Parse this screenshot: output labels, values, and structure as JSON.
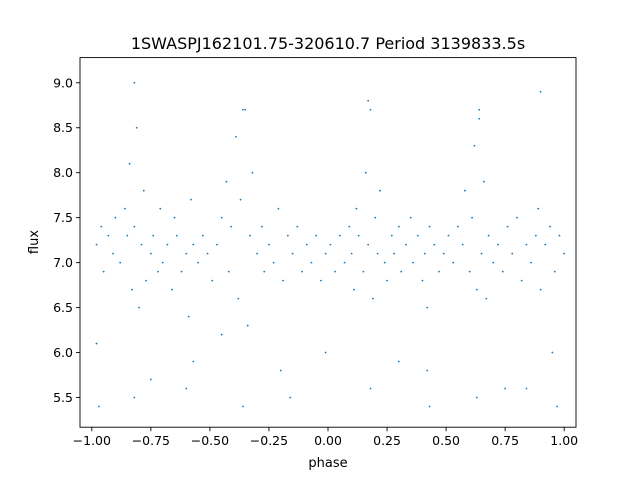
{
  "chart_data": {
    "type": "scatter",
    "title": "1SWASPJ162101.75-320610.7 Period 3139833.5s",
    "xlabel": "phase",
    "ylabel": "flux",
    "xlim": [
      -1.05,
      1.05
    ],
    "ylim": [
      5.17,
      9.28
    ],
    "x_ticks": [
      -1.0,
      -0.75,
      -0.5,
      -0.25,
      0.0,
      0.25,
      0.5,
      0.75,
      1.0
    ],
    "x_tick_labels": [
      "−1.00",
      "−0.75",
      "−0.50",
      "−0.25",
      "0.00",
      "0.25",
      "0.50",
      "0.75",
      "1.00"
    ],
    "y_ticks": [
      5.5,
      6.0,
      6.5,
      7.0,
      7.5,
      8.0,
      8.5,
      9.0
    ],
    "y_tick_labels": [
      "5.5",
      "6.0",
      "6.5",
      "7.0",
      "7.5",
      "8.0",
      "8.5",
      "9.0"
    ],
    "marker_color": "#1f77b4",
    "grid": false,
    "legend": "none",
    "series": [
      {
        "x": [
          -0.98,
          -0.96,
          -0.95,
          -0.93,
          -0.91,
          -0.9,
          -0.88,
          -0.86,
          -0.85,
          -0.84,
          -0.83,
          -0.82,
          -0.81,
          -0.8,
          -0.79,
          -0.78,
          -0.77,
          -0.75,
          -0.74,
          -0.72,
          -0.71,
          -0.7,
          -0.68,
          -0.66,
          -0.65,
          -0.64,
          -0.62,
          -0.6,
          -0.59,
          -0.58,
          -0.57,
          -0.55,
          -0.53,
          -0.51,
          -0.49,
          -0.47,
          -0.45,
          -0.43,
          -0.42,
          -0.41,
          -0.39,
          -0.38,
          -0.37,
          -0.35,
          -0.34,
          -0.33,
          -0.32,
          -0.3,
          -0.28,
          -0.27,
          -0.25,
          -0.23,
          -0.21,
          -0.19,
          -0.17,
          -0.15,
          -0.13,
          -0.11,
          -0.09,
          -0.07,
          -0.05,
          -0.03,
          -0.01,
          0.01,
          0.03,
          0.05,
          0.07,
          0.09,
          0.1,
          0.11,
          0.12,
          0.13,
          0.15,
          0.16,
          0.17,
          0.18,
          0.19,
          0.2,
          0.21,
          0.22,
          0.24,
          0.25,
          0.27,
          0.28,
          0.3,
          0.31,
          0.33,
          0.35,
          0.36,
          0.38,
          0.4,
          0.41,
          0.42,
          0.43,
          0.45,
          0.47,
          0.49,
          0.51,
          0.53,
          0.55,
          0.57,
          0.58,
          0.6,
          0.61,
          0.62,
          0.63,
          0.64,
          0.65,
          0.66,
          0.67,
          0.68,
          0.7,
          0.72,
          0.74,
          0.76,
          0.78,
          0.8,
          0.82,
          0.84,
          0.86,
          0.88,
          0.89,
          0.9,
          0.92,
          0.94,
          0.96,
          0.98,
          1.0,
          -0.97,
          -0.82,
          -0.6,
          -0.36,
          -0.16,
          0.18,
          0.43,
          0.63,
          0.84,
          0.97,
          -0.82,
          -0.36,
          0.17,
          0.64,
          0.9,
          -0.98,
          -0.57,
          -0.01,
          0.42,
          0.95,
          -0.75,
          -0.2,
          0.3,
          0.75,
          -0.45
        ],
        "y": [
          7.2,
          7.4,
          6.9,
          7.3,
          7.1,
          7.5,
          7.0,
          7.6,
          7.3,
          8.1,
          6.7,
          7.4,
          8.5,
          6.5,
          7.2,
          7.8,
          6.8,
          7.1,
          7.3,
          6.9,
          7.6,
          7.0,
          7.2,
          6.7,
          7.5,
          7.3,
          6.9,
          7.1,
          6.4,
          7.7,
          7.2,
          7.0,
          7.3,
          7.1,
          6.8,
          7.2,
          7.5,
          7.9,
          6.9,
          7.4,
          8.4,
          6.6,
          7.7,
          8.7,
          6.3,
          7.3,
          8.0,
          7.1,
          7.4,
          6.9,
          7.2,
          7.0,
          7.6,
          6.8,
          7.3,
          7.1,
          7.4,
          6.9,
          7.2,
          7.0,
          7.3,
          6.8,
          7.1,
          7.2,
          6.9,
          7.3,
          7.0,
          7.4,
          7.1,
          6.7,
          7.6,
          7.3,
          6.9,
          8.0,
          7.2,
          8.7,
          6.6,
          7.5,
          7.1,
          7.8,
          7.0,
          6.8,
          7.3,
          7.1,
          7.4,
          6.9,
          7.2,
          7.5,
          7.0,
          7.3,
          6.8,
          7.1,
          6.5,
          7.4,
          7.2,
          6.9,
          7.1,
          7.3,
          7.0,
          7.4,
          7.2,
          7.8,
          6.9,
          7.5,
          8.3,
          6.7,
          8.6,
          7.1,
          7.9,
          6.6,
          7.3,
          7.0,
          7.2,
          6.9,
          7.4,
          7.1,
          7.5,
          6.8,
          7.2,
          7.0,
          7.3,
          7.6,
          6.7,
          7.2,
          7.4,
          6.9,
          7.3,
          7.1,
          5.4,
          5.5,
          5.6,
          5.4,
          5.5,
          5.6,
          5.4,
          5.5,
          5.6,
          5.4,
          9.0,
          8.7,
          8.8,
          8.7,
          8.9,
          6.1,
          5.9,
          6.0,
          5.8,
          6.0,
          5.7,
          5.8,
          5.9,
          5.6,
          6.2
        ]
      }
    ]
  }
}
